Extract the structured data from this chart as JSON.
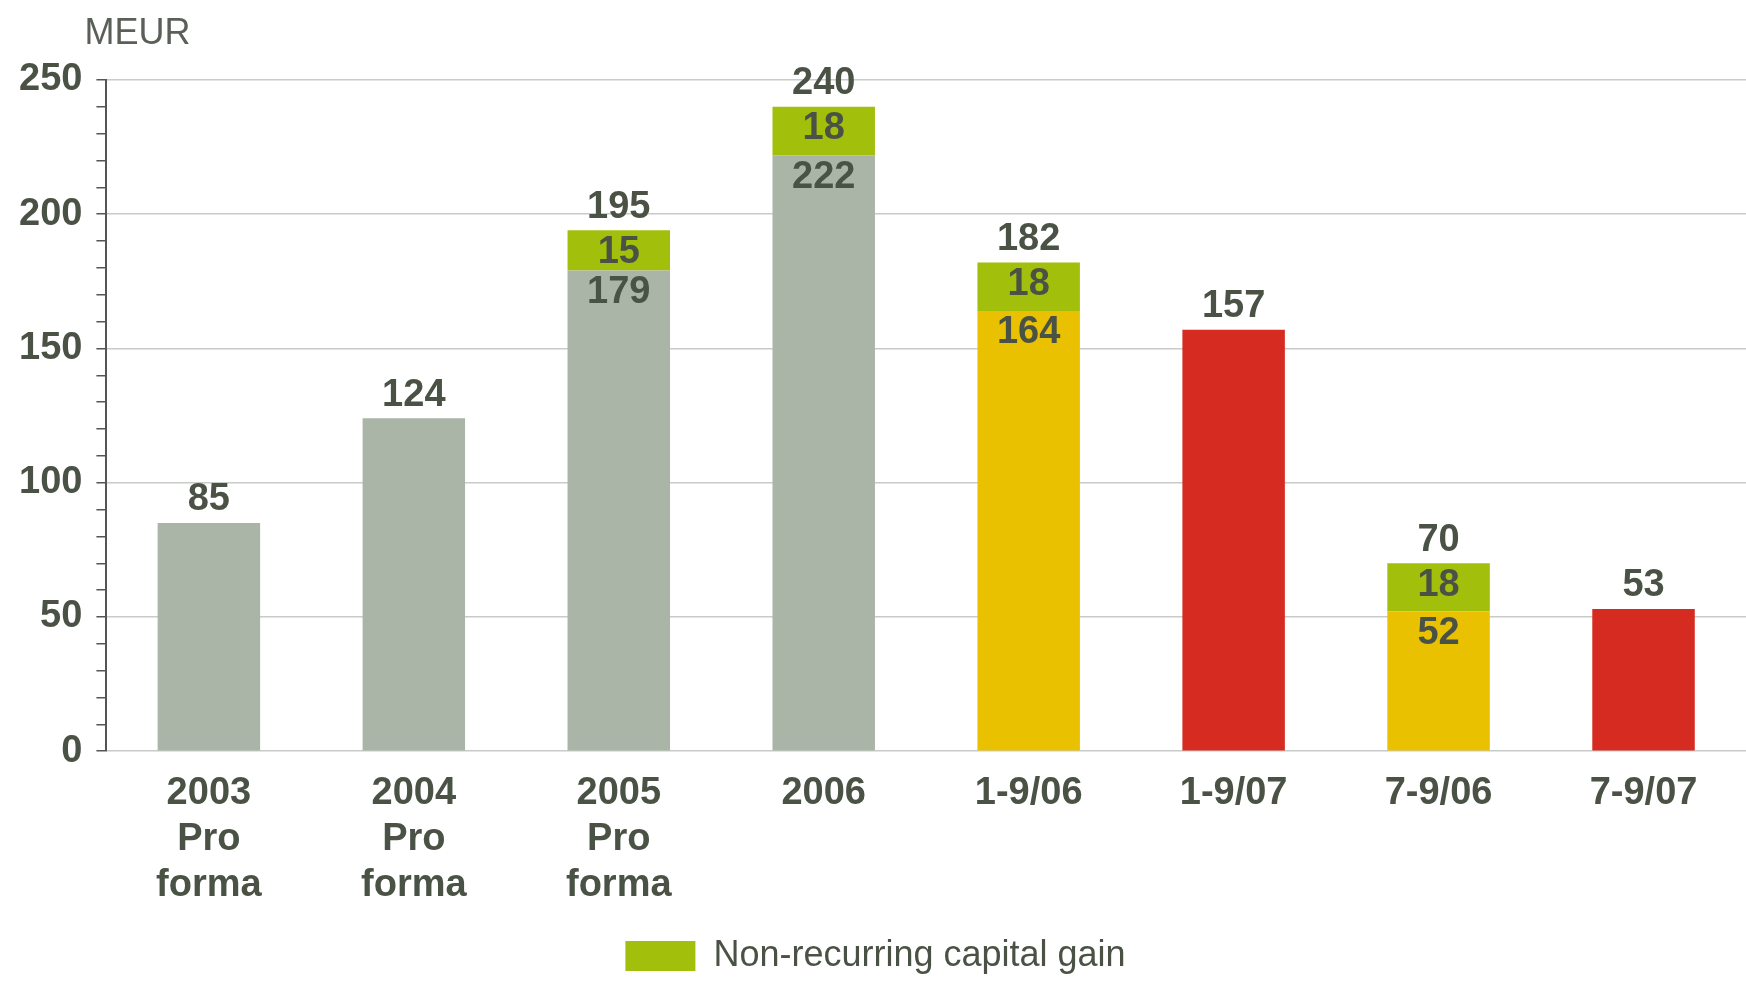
{
  "chart_data": {
    "type": "bar",
    "ylabel": "MEUR",
    "stacked": true,
    "categories": [
      "2003 Pro forma",
      "2004 Pro forma",
      "2005 Pro forma",
      "2006",
      "1-9/06",
      "1-9/07",
      "7-9/06",
      "7-9/07"
    ],
    "series": [
      {
        "colors": [
          "#aab5a8",
          "#aab5a8",
          "#aab5a8",
          "#aab5a8",
          "#eac100",
          "#d62b20",
          "#eac100",
          "#d62b20"
        ],
        "values": [
          85,
          124,
          179,
          222,
          164,
          157,
          52,
          53
        ],
        "value_labels": [
          null,
          null,
          "179",
          "222",
          "164",
          null,
          "52",
          null
        ]
      },
      {
        "name": "Non-recurring capital gain",
        "color": "#a2bf0c",
        "values": [
          null,
          null,
          15,
          18,
          18,
          null,
          18,
          null
        ],
        "value_labels": [
          null,
          null,
          "15",
          "18",
          "18",
          null,
          "18",
          null
        ]
      }
    ],
    "totals": [
      "85",
      "124",
      "195",
      "240",
      "182",
      "157",
      "70",
      "53"
    ],
    "ylim": [
      0,
      250
    ],
    "yticks": [
      0,
      {
        "value": 10,
        "label": null
      },
      {
        "value": 20,
        "label": null
      },
      {
        "value": 30,
        "label": null
      },
      {
        "value": 40,
        "label": null
      },
      50,
      {
        "value": 60,
        "label": null
      },
      {
        "value": 70,
        "label": null
      },
      {
        "value": 80,
        "label": null
      },
      {
        "value": 90,
        "label": null
      },
      100,
      {
        "value": 110,
        "label": null
      },
      {
        "value": 120,
        "label": null
      },
      {
        "value": 130,
        "label": null
      },
      {
        "value": 140,
        "label": null
      },
      150,
      {
        "value": 160,
        "label": null
      },
      {
        "value": 170,
        "label": null
      },
      {
        "value": 180,
        "label": null
      },
      {
        "value": 190,
        "label": null
      },
      200,
      {
        "value": 210,
        "label": null
      },
      {
        "value": 220,
        "label": null
      },
      {
        "value": 230,
        "label": null
      },
      {
        "value": 240,
        "label": null
      },
      250
    ],
    "grid": "y",
    "legend": "bottom"
  }
}
